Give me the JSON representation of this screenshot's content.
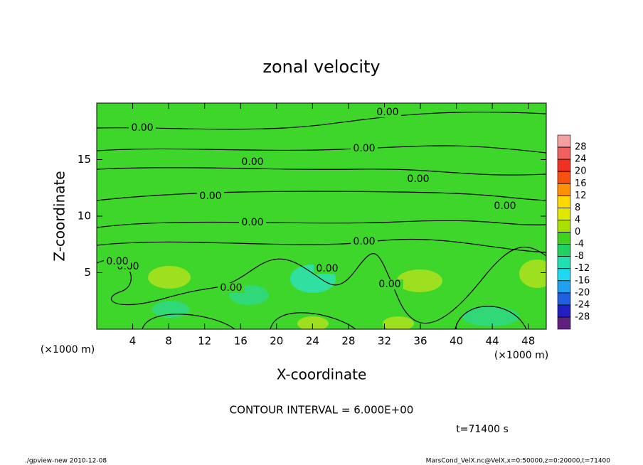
{
  "chart_data": {
    "type": "contour",
    "title": "zonal velocity",
    "xlabel": "X-coordinate",
    "ylabel": "Z-coordinate",
    "x_unit": "(×1000 m)",
    "y_unit": "(×1000 m)",
    "xlim": [
      0,
      50
    ],
    "ylim": [
      0,
      20
    ],
    "xticks": [
      4,
      8,
      12,
      16,
      20,
      24,
      28,
      32,
      36,
      40,
      44,
      48
    ],
    "yticks": [
      5,
      10,
      15
    ],
    "contour_labels": [
      "0.00",
      "0.00",
      "0.00",
      "0.00",
      "0.00",
      "0.00",
      "0.00",
      "0.00",
      "0.00",
      "0.00",
      "0.00",
      "0.00",
      "0.00",
      "0.00"
    ],
    "contour_interval": "CONTOUR INTERVAL = 6.000E+00",
    "time_label": "t=71400 s",
    "colorbar": {
      "levels": [
        28,
        24,
        20,
        16,
        12,
        8,
        4,
        0,
        -4,
        -8,
        -12,
        -16,
        -20,
        -24,
        -28
      ],
      "colors": [
        "#f4a0a0",
        "#f06060",
        "#f03020",
        "#f85010",
        "#ff9000",
        "#ffd800",
        "#e0e800",
        "#a8e000",
        "#40d020",
        "#20d060",
        "#20e0b0",
        "#20d8f0",
        "#20a0f0",
        "#2060e0",
        "#2020c0",
        "#602080"
      ]
    },
    "footer_left": "./gpview-new  2010-12-08",
    "footer_right": "MarsCond_VelX.nc@VelX,x=0:50000,z=0:20000,t=71400"
  }
}
